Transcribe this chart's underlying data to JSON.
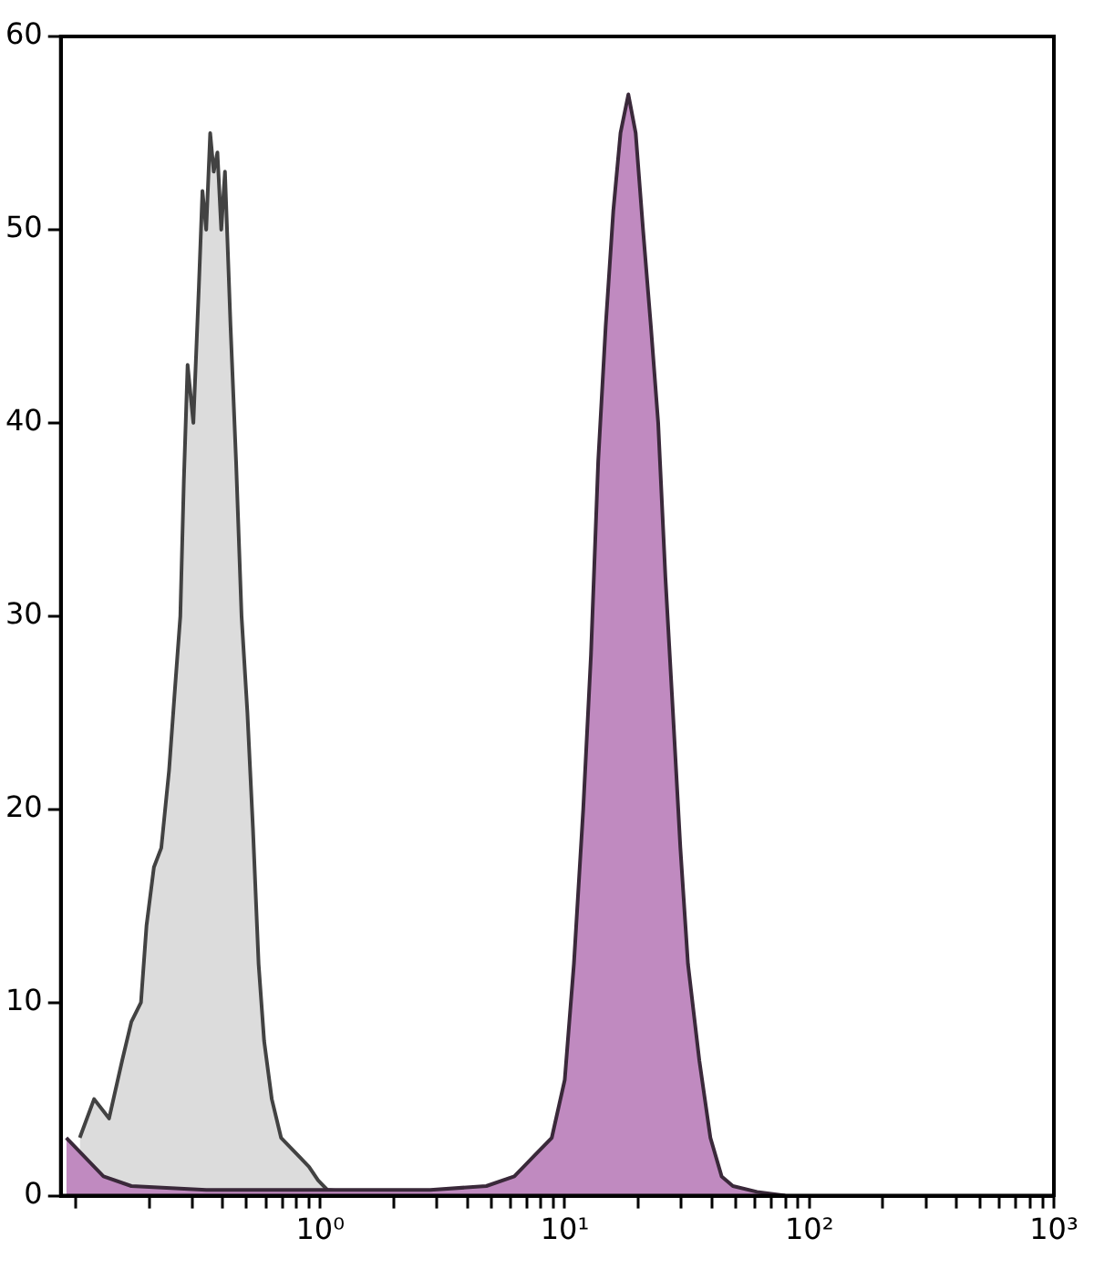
{
  "chart_data": {
    "type": "area",
    "log": "x",
    "grid": false,
    "legend": false,
    "xlim": [
      0.087,
      1000
    ],
    "xticks": [
      {
        "value": 0.1,
        "label": null
      },
      {
        "value": 0.2,
        "label": null
      },
      {
        "value": 0.3,
        "label": null
      },
      {
        "value": 0.4,
        "label": null
      },
      {
        "value": 0.5,
        "label": null
      },
      {
        "value": 0.6,
        "label": null
      },
      {
        "value": 0.7,
        "label": null
      },
      {
        "value": 0.8,
        "label": null
      },
      {
        "value": 0.9,
        "label": null
      },
      {
        "value": 1,
        "label": "10⁰"
      },
      {
        "value": 2,
        "label": null
      },
      {
        "value": 3,
        "label": null
      },
      {
        "value": 4,
        "label": null
      },
      {
        "value": 5,
        "label": null
      },
      {
        "value": 6,
        "label": null
      },
      {
        "value": 7,
        "label": null
      },
      {
        "value": 8,
        "label": null
      },
      {
        "value": 9,
        "label": null
      },
      {
        "value": 10,
        "label": "10¹"
      },
      {
        "value": 20,
        "label": null
      },
      {
        "value": 30,
        "label": null
      },
      {
        "value": 40,
        "label": null
      },
      {
        "value": 50,
        "label": null
      },
      {
        "value": 60,
        "label": null
      },
      {
        "value": 70,
        "label": null
      },
      {
        "value": 80,
        "label": null
      },
      {
        "value": 90,
        "label": null
      },
      {
        "value": 100,
        "label": "10²"
      },
      {
        "value": 200,
        "label": null
      },
      {
        "value": 300,
        "label": null
      },
      {
        "value": 400,
        "label": null
      },
      {
        "value": 500,
        "label": null
      },
      {
        "value": 600,
        "label": null
      },
      {
        "value": 700,
        "label": null
      },
      {
        "value": 800,
        "label": null
      },
      {
        "value": 900,
        "label": null
      },
      {
        "value": 1000,
        "label": "10³"
      }
    ],
    "ylim": [
      0,
      60
    ],
    "yticks": [
      0,
      10,
      20,
      30,
      40,
      50,
      60
    ],
    "series": [
      {
        "color": "#dcdcdc",
        "x": [
          0.104,
          0.119,
          0.137,
          0.155,
          0.169,
          0.185,
          0.195,
          0.209,
          0.224,
          0.241,
          0.254,
          0.268,
          0.277,
          0.287,
          0.303,
          0.319,
          0.33,
          0.342,
          0.355,
          0.367,
          0.38,
          0.394,
          0.408,
          0.43,
          0.453,
          0.477,
          0.504,
          0.531,
          0.56,
          0.59,
          0.634,
          0.692,
          0.755,
          0.824,
          0.9,
          0.98,
          1.07,
          1.28,
          1.66,
          2.37
        ],
        "values": [
          3,
          5,
          4,
          7,
          9,
          10,
          14,
          17,
          18,
          22,
          26,
          30,
          37,
          43,
          40,
          47,
          52,
          50,
          55,
          53,
          54,
          50,
          53,
          45,
          38,
          30,
          25,
          19,
          12,
          8,
          5,
          3,
          2.5,
          2,
          1.5,
          0.8,
          0.3,
          0.2,
          0.1,
          0
        ]
      },
      {
        "color": "#c08ac0",
        "x": [
          0.0916,
          0.109,
          0.13,
          0.169,
          0.342,
          0.98,
          2.82,
          4.78,
          6.22,
          7.42,
          8.85,
          10,
          10.9,
          11.9,
          12.8,
          13.7,
          14.7,
          15.8,
          16.9,
          18.2,
          19.5,
          20.9,
          22.5,
          24.1,
          25.8,
          27.7,
          29.7,
          31.9,
          35.5,
          39.4,
          43.8,
          48.7,
          61.1,
          79.6
        ],
        "values": [
          3,
          2,
          1,
          0.5,
          0.3,
          0.3,
          0.3,
          0.5,
          1,
          2,
          3,
          6,
          12,
          20,
          28,
          38,
          45,
          51,
          55,
          57,
          55,
          50,
          45,
          40,
          32,
          25,
          18,
          12,
          7,
          3,
          1,
          0.5,
          0.2,
          0
        ]
      }
    ]
  }
}
